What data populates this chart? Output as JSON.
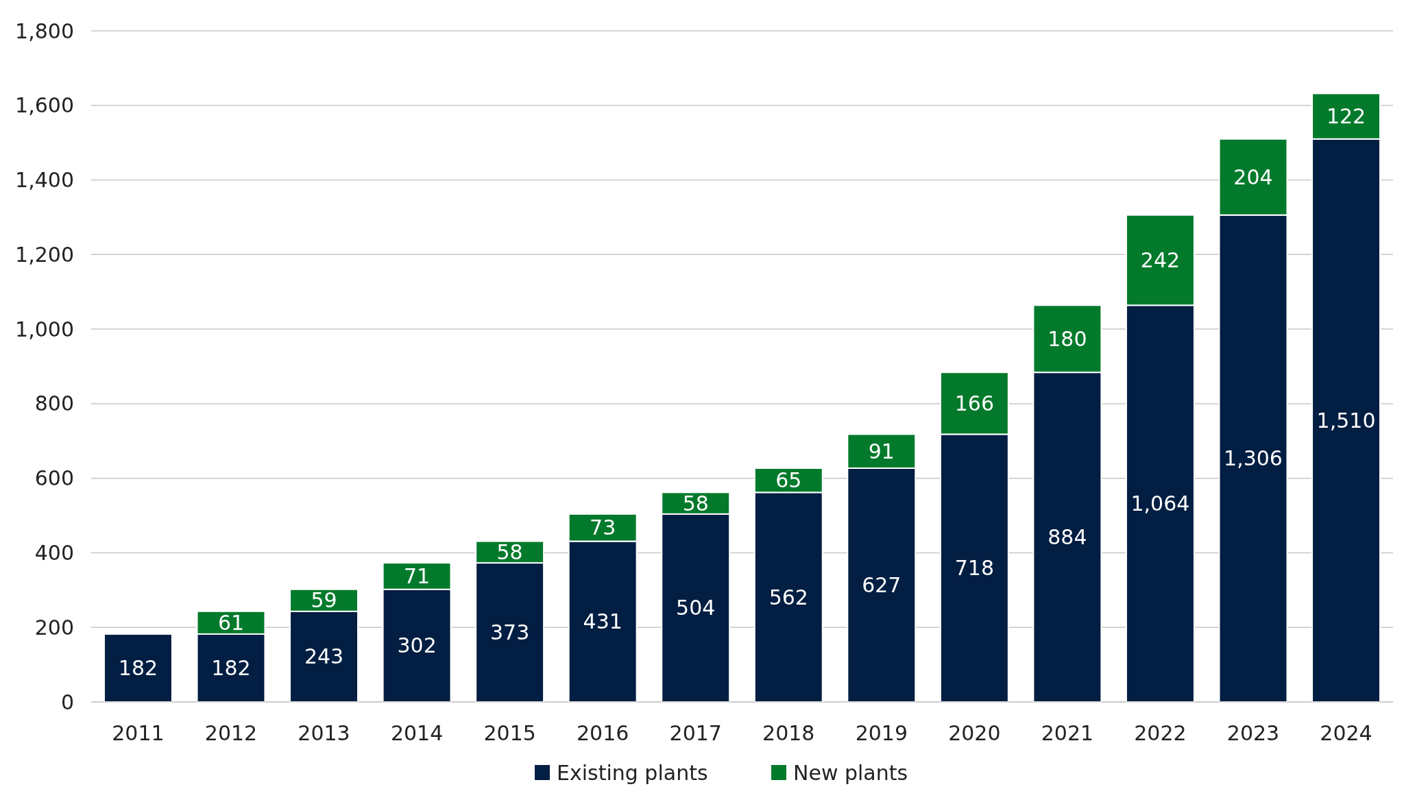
{
  "chart_data": {
    "type": "bar",
    "stacked": true,
    "categories": [
      "2011",
      "2012",
      "2013",
      "2014",
      "2015",
      "2016",
      "2017",
      "2018",
      "2019",
      "2020",
      "2021",
      "2022",
      "2023",
      "2024"
    ],
    "series": [
      {
        "name": "Existing plants",
        "color": "#021e42",
        "values": [
          182,
          182,
          243,
          302,
          373,
          431,
          504,
          562,
          627,
          718,
          884,
          1064,
          1306,
          1510
        ],
        "value_labels": [
          "182",
          "182",
          "243",
          "302",
          "373",
          "431",
          "504",
          "562",
          "627",
          "718",
          "884",
          "1,064",
          "1,306",
          "1,510"
        ]
      },
      {
        "name": "New plants",
        "color": "#037a2b",
        "values": [
          null,
          61,
          59,
          71,
          58,
          73,
          58,
          65,
          91,
          166,
          180,
          242,
          204,
          122
        ],
        "value_labels": [
          null,
          "61",
          "59",
          "71",
          "58",
          "73",
          "58",
          "65",
          "91",
          "166",
          "180",
          "242",
          "204",
          "122"
        ]
      }
    ],
    "ylim": [
      0,
      1800
    ],
    "yticks": [
      0,
      200,
      400,
      600,
      800,
      {
        "value": 1000,
        "label": "1,000"
      },
      {
        "value": 1200,
        "label": "1,200"
      },
      {
        "value": 1400,
        "label": "1,400"
      },
      {
        "value": 1600,
        "label": "1,600"
      },
      {
        "value": 1800,
        "label": "1,800"
      }
    ],
    "grid": "y",
    "legend": "bottom"
  }
}
